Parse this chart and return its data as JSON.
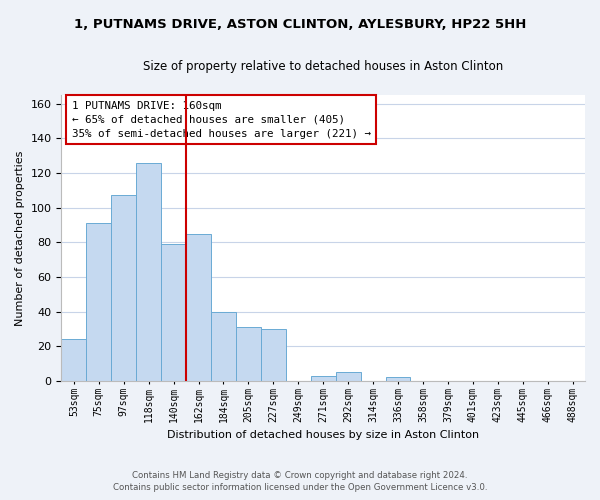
{
  "title": "1, PUTNAMS DRIVE, ASTON CLINTON, AYLESBURY, HP22 5HH",
  "subtitle": "Size of property relative to detached houses in Aston Clinton",
  "xlabel": "Distribution of detached houses by size in Aston Clinton",
  "ylabel": "Number of detached properties",
  "bar_labels": [
    "53sqm",
    "75sqm",
    "97sqm",
    "118sqm",
    "140sqm",
    "162sqm",
    "184sqm",
    "205sqm",
    "227sqm",
    "249sqm",
    "271sqm",
    "292sqm",
    "314sqm",
    "336sqm",
    "358sqm",
    "379sqm",
    "401sqm",
    "423sqm",
    "445sqm",
    "466sqm",
    "488sqm"
  ],
  "bar_values": [
    24,
    91,
    107,
    126,
    79,
    85,
    40,
    31,
    30,
    0,
    3,
    5,
    0,
    2,
    0,
    0,
    0,
    0,
    0,
    0,
    0
  ],
  "bar_color": "#c5d9f0",
  "bar_edge_color": "#6aaad4",
  "vline_x": 4.5,
  "vline_color": "#cc0000",
  "annotation_line1": "1 PUTNAMS DRIVE: 160sqm",
  "annotation_line2": "← 65% of detached houses are smaller (405)",
  "annotation_line3": "35% of semi-detached houses are larger (221) →",
  "annotation_box_color": "#ffffff",
  "annotation_box_edge": "#cc0000",
  "ylim": [
    0,
    165
  ],
  "yticks": [
    0,
    20,
    40,
    60,
    80,
    100,
    120,
    140,
    160
  ],
  "footer_line1": "Contains HM Land Registry data © Crown copyright and database right 2024.",
  "footer_line2": "Contains public sector information licensed under the Open Government Licence v3.0.",
  "background_color": "#eef2f8",
  "plot_bg_color": "#ffffff",
  "grid_color": "#c8d4e8"
}
